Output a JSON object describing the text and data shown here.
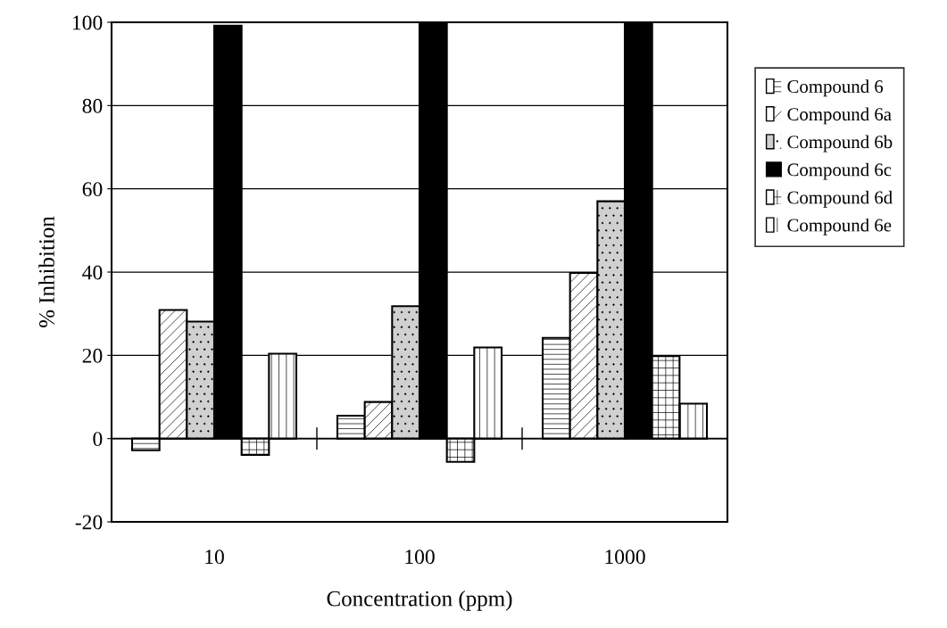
{
  "chart_data": {
    "type": "bar",
    "categories": [
      "10",
      "100",
      "1000"
    ],
    "xlabel": "Concentration (ppm)",
    "ylabel": "% Inhibition",
    "series": [
      {
        "name": "Compound 6",
        "color": "#ffffff",
        "values": [
          -2.8,
          5.5,
          24.2
        ]
      },
      {
        "name": "Compound 6a",
        "color": "#ffffff",
        "values": [
          30.9,
          8.8,
          39.8
        ]
      },
      {
        "name": "Compound 6b",
        "color": "#d0d0d0",
        "values": [
          28.1,
          31.8,
          57.0
        ]
      },
      {
        "name": "Compound 6c",
        "color": "#000000",
        "values": [
          99.2,
          100,
          100
        ]
      },
      {
        "name": "Compound 6d",
        "color": "#ffffff",
        "values": [
          -3.9,
          -5.6,
          19.8
        ]
      },
      {
        "name": "Compound 6e",
        "color": "#ffffff",
        "values": [
          20.4,
          21.9,
          8.4
        ]
      }
    ],
    "ylim": [
      -20,
      100
    ],
    "yticks": [
      -20,
      0,
      20,
      40,
      60,
      80,
      100
    ],
    "grid": "y",
    "legend": "right"
  }
}
